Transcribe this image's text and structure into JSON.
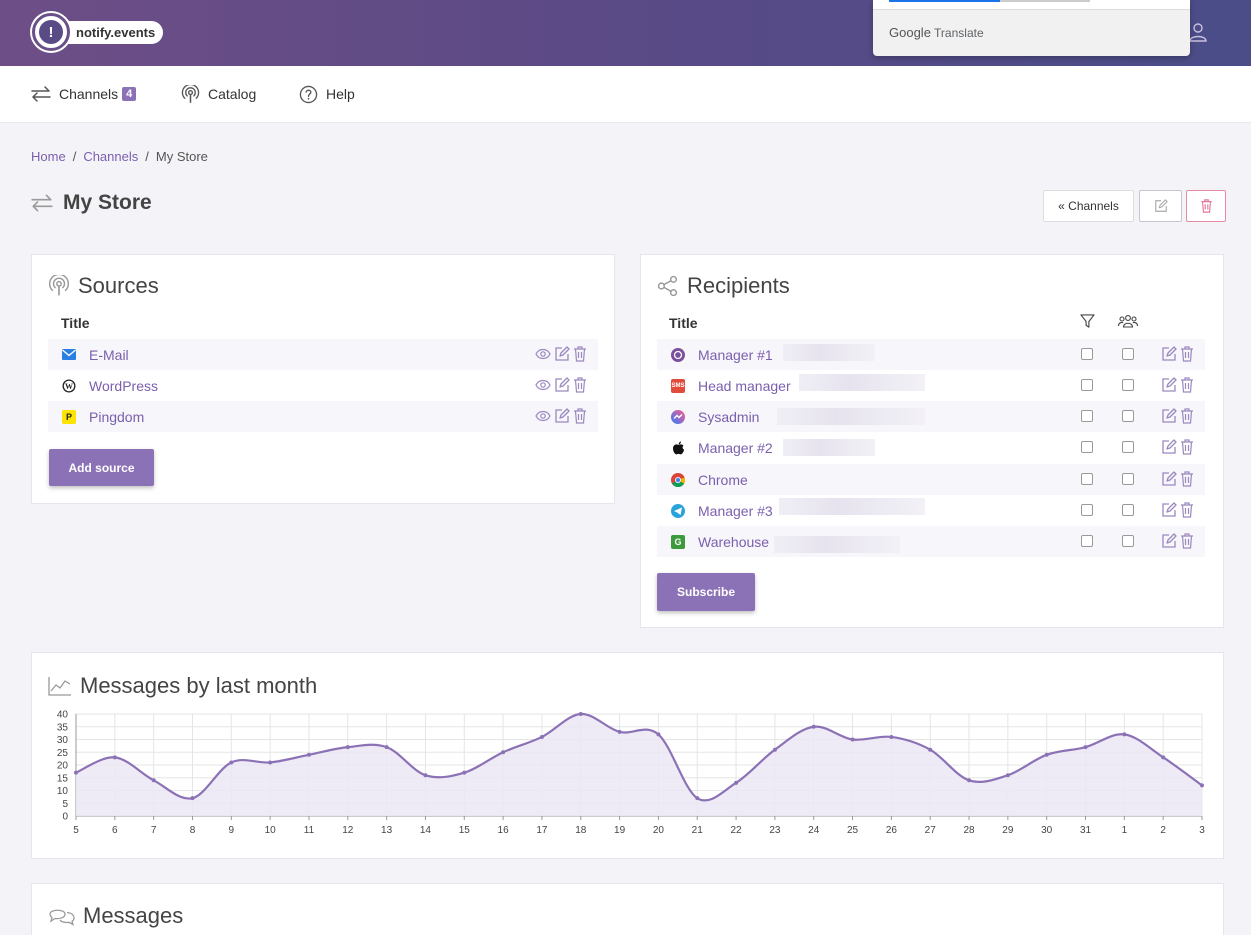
{
  "header": {
    "brand": "notify.events",
    "brand_mark": "!",
    "translate_label_brand": "Google",
    "translate_label_text": "Translate"
  },
  "nav": {
    "channels_label": "Channels",
    "channels_count": "4",
    "catalog_label": "Catalog",
    "help_label": "Help"
  },
  "breadcrumb": {
    "home": "Home",
    "channels": "Channels",
    "current": "My Store",
    "separator": "/"
  },
  "page": {
    "title": "My Store",
    "back_button": "« Channels"
  },
  "sources": {
    "title": "Sources",
    "column_title": "Title",
    "items": [
      {
        "label": "E-Mail",
        "icon": "email-icon",
        "icon_color": "#2a7de1"
      },
      {
        "label": "WordPress",
        "icon": "wordpress-icon",
        "icon_color": "#222222"
      },
      {
        "label": "Pingdom",
        "icon": "pingdom-icon",
        "icon_color": "#fde300"
      }
    ],
    "add_button": "Add source"
  },
  "recipients": {
    "title": "Recipients",
    "column_title": "Title",
    "items": [
      {
        "label": "Manager #1",
        "icon": "viber-icon",
        "icon_color": "#7b519d",
        "filter": false,
        "group": false
      },
      {
        "label": "Head manager",
        "icon": "sms-icon",
        "icon_color": "#e04b3c",
        "filter": false,
        "group": false
      },
      {
        "label": "Sysadmin",
        "icon": "messenger-icon",
        "icon_color": "#a040ff",
        "filter": false,
        "group": false
      },
      {
        "label": "Manager #2",
        "icon": "apple-icon",
        "icon_color": "#111111",
        "filter": false,
        "group": false
      },
      {
        "label": "Chrome",
        "icon": "chrome-icon",
        "icon_color": "#4285f4",
        "filter": false,
        "group": false
      },
      {
        "label": "Manager #3",
        "icon": "telegram-icon",
        "icon_color": "#2aa3dc",
        "filter": false,
        "group": false
      },
      {
        "label": "Warehouse",
        "icon": "gotify-icon",
        "icon_color": "#3d9a3d",
        "filter": false,
        "group": false
      }
    ],
    "subscribe_button": "Subscribe"
  },
  "chart_section": {
    "title": "Messages by last month"
  },
  "messages_section": {
    "title": "Messages"
  },
  "colors": {
    "accent": "#8b72b6",
    "link": "#7b5fae",
    "danger": "#e78aa6"
  },
  "chart_data": {
    "type": "area",
    "title": "Messages by last month",
    "x": [
      "5",
      "6",
      "7",
      "8",
      "9",
      "10",
      "11",
      "12",
      "13",
      "14",
      "15",
      "16",
      "17",
      "18",
      "19",
      "20",
      "21",
      "22",
      "23",
      "24",
      "25",
      "26",
      "27",
      "28",
      "29",
      "30",
      "31",
      "1",
      "2",
      "3"
    ],
    "series": [
      {
        "values": [
          17,
          23,
          14,
          7,
          21,
          21,
          24,
          27,
          27,
          16,
          17,
          25,
          31,
          40,
          33,
          32,
          7,
          13,
          26,
          35,
          30,
          31,
          26,
          14,
          16,
          24,
          27,
          32,
          23,
          12
        ]
      }
    ],
    "yticks": [
      0,
      5,
      10,
      15,
      20,
      25,
      30,
      35,
      40
    ],
    "ylim": [
      0,
      40
    ],
    "grid": true,
    "line_color": "#8b72b6",
    "fill_color": "#ece8f4"
  }
}
